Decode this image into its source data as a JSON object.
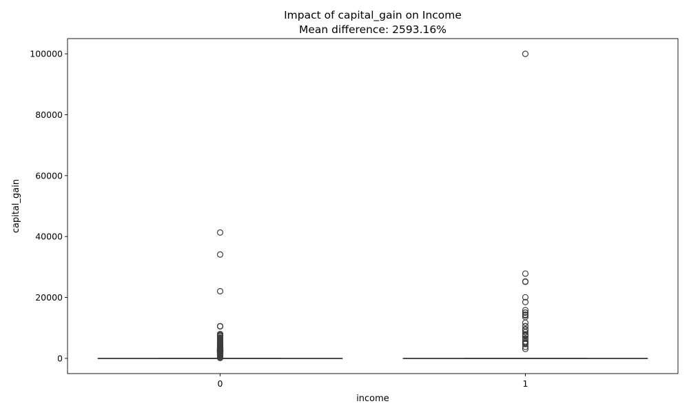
{
  "chart_data": {
    "type": "box",
    "title": "Impact of capital_gain on Income",
    "subtitle": "Mean difference: 2593.16%",
    "xlabel": "income",
    "ylabel": "capital_gain",
    "ylim": [
      -5000,
      105000
    ],
    "yticks": [
      0,
      20000,
      40000,
      60000,
      80000,
      100000
    ],
    "categories": [
      "0",
      "1"
    ],
    "grid": false,
    "boxes": [
      {
        "category": "0",
        "min": 0,
        "q1": 0,
        "median": 0,
        "q3": 0,
        "max": 0,
        "outliers": [
          41310,
          34095,
          22040,
          10566,
          10520,
          10505,
          7978,
          7688,
          7443,
          7298,
          6849,
          6723,
          6497,
          6418,
          6097,
          5721,
          5455,
          5178,
          5060,
          4931,
          4865,
          4650,
          4508,
          4416,
          4101,
          4064,
          3942,
          3887,
          3818,
          3674,
          3464,
          3456,
          3432,
          3411,
          3325,
          3273,
          3137,
          3103,
          2993,
          2964,
          2961,
          2936,
          2907,
          2885,
          2829,
          2653,
          2635,
          2597,
          2580,
          2538,
          2463,
          2414,
          2407,
          2387,
          2354,
          2346,
          2329,
          2290,
          2228,
          2202,
          2176,
          2174,
          2105,
          2062,
          2050,
          2036,
          2009,
          1848,
          1831,
          1797,
          1639,
          1506,
          1471,
          1455,
          1424,
          1409,
          1173,
          1151,
          1111,
          1086,
          1055,
          991,
          914,
          594,
          401,
          114
        ]
      },
      {
        "category": "1",
        "min": 0,
        "q1": 0,
        "median": 0,
        "q3": 0,
        "max": 0,
        "outliers": [
          99999,
          27828,
          25236,
          25124,
          20051,
          18481,
          15831,
          15024,
          15020,
          14344,
          14084,
          13550,
          11678,
          10605,
          10520,
          9562,
          9386,
          8614,
          7896,
          7688,
          7430,
          7298,
          6514,
          6418,
          5556,
          5178,
          5013,
          4787,
          4687,
          3781,
          3103
        ]
      }
    ]
  },
  "colors": {
    "box_edge": "#3d3d3d",
    "background": "#ffffff"
  }
}
